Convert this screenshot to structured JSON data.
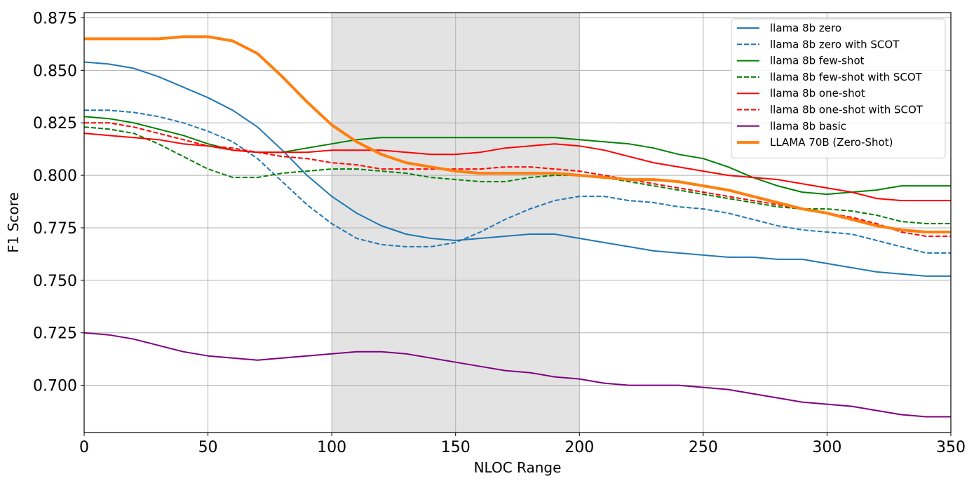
{
  "chart_data": {
    "type": "line",
    "title": "",
    "xlabel": "NLOC Range",
    "ylabel": "F1 Score",
    "xlim": [
      0,
      350
    ],
    "ylim": [
      0.6775,
      0.8775
    ],
    "xticks": [
      0,
      50,
      100,
      150,
      200,
      250,
      300,
      350
    ],
    "yticks": [
      0.7,
      0.725,
      0.75,
      0.775,
      0.8,
      0.825,
      0.85,
      0.875
    ],
    "ytick_labels": [
      "0.700",
      "0.725",
      "0.750",
      "0.775",
      "0.800",
      "0.825",
      "0.850",
      "0.875"
    ],
    "grid": true,
    "legend_position": "top-right",
    "shaded_region": {
      "x_start": 100,
      "x_end": 200,
      "color": "#e3e3e3"
    },
    "x": [
      0,
      10,
      20,
      30,
      40,
      50,
      60,
      70,
      80,
      90,
      100,
      110,
      120,
      130,
      140,
      150,
      160,
      170,
      180,
      190,
      200,
      210,
      220,
      230,
      240,
      250,
      260,
      270,
      280,
      290,
      300,
      310,
      320,
      330,
      340,
      350
    ],
    "series": [
      {
        "name": "llama 8b zero",
        "color": "#1f77b4",
        "dash": "solid",
        "width": 2,
        "values": [
          0.854,
          0.853,
          0.851,
          0.847,
          0.842,
          0.837,
          0.831,
          0.823,
          0.812,
          0.8,
          0.79,
          0.782,
          0.776,
          0.772,
          0.77,
          0.769,
          0.77,
          0.771,
          0.772,
          0.772,
          0.77,
          0.768,
          0.766,
          0.764,
          0.763,
          0.762,
          0.761,
          0.761,
          0.76,
          0.76,
          0.758,
          0.756,
          0.754,
          0.753,
          0.752,
          0.752
        ]
      },
      {
        "name": "llama 8b zero with SCOT",
        "color": "#1f77b4",
        "dash": "dashed",
        "width": 2,
        "values": [
          0.831,
          0.831,
          0.83,
          0.828,
          0.825,
          0.821,
          0.816,
          0.808,
          0.797,
          0.786,
          0.777,
          0.77,
          0.767,
          0.766,
          0.766,
          0.768,
          0.773,
          0.779,
          0.784,
          0.788,
          0.79,
          0.79,
          0.788,
          0.787,
          0.785,
          0.784,
          0.782,
          0.779,
          0.776,
          0.774,
          0.773,
          0.772,
          0.769,
          0.766,
          0.763,
          0.763
        ]
      },
      {
        "name": "llama 8b few-shot",
        "color": "#008000",
        "dash": "solid",
        "width": 2,
        "values": [
          0.828,
          0.827,
          0.825,
          0.822,
          0.819,
          0.815,
          0.812,
          0.811,
          0.811,
          0.813,
          0.815,
          0.817,
          0.818,
          0.818,
          0.818,
          0.818,
          0.818,
          0.818,
          0.818,
          0.818,
          0.817,
          0.816,
          0.815,
          0.813,
          0.81,
          0.808,
          0.804,
          0.799,
          0.795,
          0.792,
          0.791,
          0.792,
          0.793,
          0.795,
          0.795,
          0.795
        ]
      },
      {
        "name": "llama 8b few-shot with SCOT",
        "color": "#008000",
        "dash": "dashed",
        "width": 2,
        "values": [
          0.823,
          0.822,
          0.82,
          0.815,
          0.809,
          0.803,
          0.799,
          0.799,
          0.801,
          0.802,
          0.803,
          0.803,
          0.802,
          0.801,
          0.799,
          0.798,
          0.797,
          0.797,
          0.799,
          0.8,
          0.8,
          0.799,
          0.797,
          0.795,
          0.793,
          0.791,
          0.789,
          0.787,
          0.785,
          0.784,
          0.784,
          0.783,
          0.781,
          0.778,
          0.777,
          0.777
        ]
      },
      {
        "name": "llama 8b one-shot",
        "color": "#ff0000",
        "dash": "solid",
        "width": 2,
        "values": [
          0.82,
          0.819,
          0.818,
          0.817,
          0.815,
          0.814,
          0.812,
          0.811,
          0.811,
          0.811,
          0.812,
          0.812,
          0.812,
          0.811,
          0.81,
          0.81,
          0.811,
          0.813,
          0.814,
          0.815,
          0.814,
          0.812,
          0.809,
          0.806,
          0.804,
          0.802,
          0.8,
          0.799,
          0.798,
          0.796,
          0.794,
          0.792,
          0.789,
          0.788,
          0.788,
          0.788
        ]
      },
      {
        "name": "llama 8b one-shot with SCOT",
        "color": "#ff0000",
        "dash": "dashed",
        "width": 2,
        "values": [
          0.825,
          0.825,
          0.823,
          0.82,
          0.817,
          0.814,
          0.813,
          0.811,
          0.809,
          0.808,
          0.806,
          0.805,
          0.803,
          0.803,
          0.803,
          0.803,
          0.803,
          0.804,
          0.804,
          0.803,
          0.802,
          0.8,
          0.798,
          0.796,
          0.794,
          0.792,
          0.79,
          0.788,
          0.786,
          0.784,
          0.782,
          0.78,
          0.777,
          0.773,
          0.771,
          0.771
        ]
      },
      {
        "name": "llama 8b basic",
        "color": "#800080",
        "dash": "solid",
        "width": 2,
        "values": [
          0.725,
          0.724,
          0.722,
          0.719,
          0.716,
          0.714,
          0.713,
          0.712,
          0.713,
          0.714,
          0.715,
          0.716,
          0.716,
          0.715,
          0.713,
          0.711,
          0.709,
          0.707,
          0.706,
          0.704,
          0.703,
          0.701,
          0.7,
          0.7,
          0.7,
          0.699,
          0.698,
          0.696,
          0.694,
          0.692,
          0.691,
          0.69,
          0.688,
          0.686,
          0.685,
          0.685
        ]
      },
      {
        "name": "LLAMA 70B (Zero-Shot)",
        "color": "#ff7f0e",
        "dash": "solid",
        "width": 4,
        "values": [
          0.865,
          0.865,
          0.865,
          0.865,
          0.866,
          0.866,
          0.864,
          0.858,
          0.847,
          0.835,
          0.824,
          0.816,
          0.81,
          0.806,
          0.804,
          0.802,
          0.801,
          0.801,
          0.801,
          0.801,
          0.8,
          0.799,
          0.798,
          0.798,
          0.797,
          0.795,
          0.793,
          0.79,
          0.787,
          0.784,
          0.782,
          0.779,
          0.776,
          0.774,
          0.773,
          0.773
        ]
      }
    ]
  }
}
